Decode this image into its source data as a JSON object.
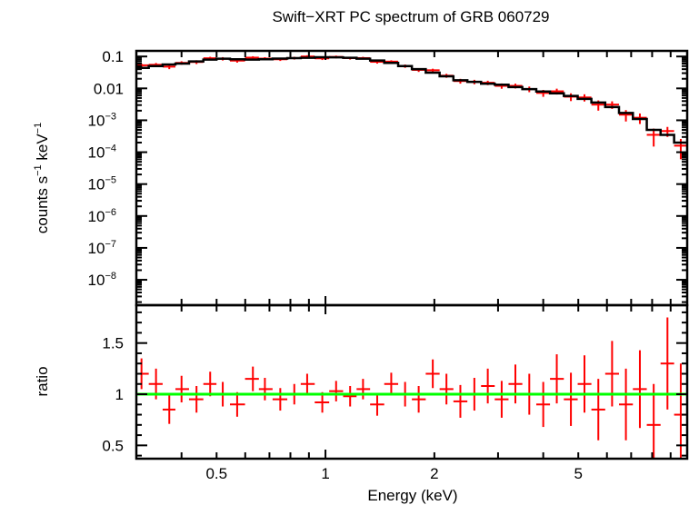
{
  "chart_data": {
    "type": "scatter",
    "title": "Swift−XRT PC spectrum of GRB 060729",
    "xlabel": "Energy (keV)",
    "xscale": "log",
    "xlim": [
      0.3,
      10
    ],
    "xticks": [
      {
        "v": 0.5,
        "label": "0.5"
      },
      {
        "v": 1,
        "label": "1"
      },
      {
        "v": 2,
        "label": "2"
      },
      {
        "v": 5,
        "label": "5"
      }
    ],
    "panels": [
      {
        "name": "spectrum",
        "ylabel_main": "counts s",
        "ylabel_sup1": "−1",
        "ylabel_mid": " keV",
        "ylabel_sup2": "−1",
        "yscale": "log",
        "ylim": [
          1.6e-09,
          0.15
        ],
        "yticks": [
          {
            "v": 0.1,
            "label": "0.1",
            "exp": ""
          },
          {
            "v": 0.01,
            "label": "0.01",
            "exp": ""
          },
          {
            "v": 0.001,
            "label": "10",
            "exp": "−3"
          },
          {
            "v": 0.0001,
            "label": "10",
            "exp": "−4"
          },
          {
            "v": 1e-05,
            "label": "10",
            "exp": "−5"
          },
          {
            "v": 1e-06,
            "label": "10",
            "exp": "−6"
          },
          {
            "v": 1e-07,
            "label": "10",
            "exp": "−7"
          },
          {
            "v": 1e-08,
            "label": "10",
            "exp": "−8"
          }
        ]
      },
      {
        "name": "ratio",
        "ylabel": "ratio",
        "yscale": "linear",
        "ylim": [
          0.37,
          1.87
        ],
        "yticks": [
          {
            "v": 0.5,
            "label": "0.5"
          },
          {
            "v": 1,
            "label": "1"
          },
          {
            "v": 1.5,
            "label": "1.5"
          }
        ],
        "reference_line": 1
      }
    ],
    "energy": [
      0.31,
      0.34,
      0.37,
      0.4,
      0.44,
      0.48,
      0.52,
      0.57,
      0.63,
      0.68,
      0.75,
      0.82,
      0.89,
      0.98,
      1.07,
      1.17,
      1.27,
      1.39,
      1.52,
      1.66,
      1.81,
      1.98,
      2.16,
      2.36,
      2.58,
      2.81,
      3.07,
      3.35,
      3.66,
      4.0,
      4.36,
      4.77,
      5.2,
      5.68,
      6.2,
      6.77,
      7.4,
      8.08,
      8.82,
      9.6
    ],
    "counts": [
      0.053,
      0.055,
      0.048,
      0.063,
      0.067,
      0.088,
      0.085,
      0.074,
      0.092,
      0.086,
      0.082,
      0.089,
      0.1,
      0.087,
      0.097,
      0.089,
      0.089,
      0.068,
      0.069,
      0.05,
      0.038,
      0.037,
      0.025,
      0.017,
      0.016,
      0.015,
      0.012,
      0.012,
      0.0095,
      0.0072,
      0.0081,
      0.0055,
      0.0052,
      0.0031,
      0.0031,
      0.0015,
      0.0012,
      0.00035,
      0.00046,
      0.00016
    ],
    "model": [
      0.044,
      0.05,
      0.056,
      0.06,
      0.07,
      0.08,
      0.085,
      0.082,
      0.08,
      0.082,
      0.086,
      0.089,
      0.091,
      0.095,
      0.094,
      0.091,
      0.085,
      0.075,
      0.063,
      0.05,
      0.04,
      0.031,
      0.024,
      0.018,
      0.016,
      0.014,
      0.013,
      0.011,
      0.0095,
      0.008,
      0.007,
      0.0058,
      0.0047,
      0.0036,
      0.0026,
      0.0017,
      0.0011,
      0.0005,
      0.00035,
      0.0002
    ],
    "ratio": [
      1.2,
      1.1,
      0.85,
      1.05,
      0.95,
      1.1,
      1.0,
      0.9,
      1.15,
      1.05,
      0.95,
      1.0,
      1.1,
      0.92,
      1.03,
      0.98,
      1.05,
      0.9,
      1.1,
      1.0,
      0.95,
      1.2,
      1.05,
      0.93,
      1.0,
      1.08,
      0.95,
      1.1,
      1.0,
      0.9,
      1.15,
      0.95,
      1.1,
      0.85,
      1.2,
      0.9,
      1.05,
      0.7,
      1.3,
      0.8
    ],
    "ratio_err": [
      0.15,
      0.15,
      0.14,
      0.13,
      0.13,
      0.12,
      0.12,
      0.12,
      0.12,
      0.11,
      0.11,
      0.1,
      0.1,
      0.1,
      0.1,
      0.1,
      0.1,
      0.11,
      0.11,
      0.12,
      0.13,
      0.14,
      0.15,
      0.16,
      0.16,
      0.17,
      0.18,
      0.19,
      0.2,
      0.22,
      0.24,
      0.26,
      0.28,
      0.3,
      0.32,
      0.35,
      0.38,
      0.4,
      0.45,
      0.5
    ],
    "colors": {
      "data": "#ff0000",
      "model": "#000000",
      "reference": "#00ff00"
    }
  }
}
